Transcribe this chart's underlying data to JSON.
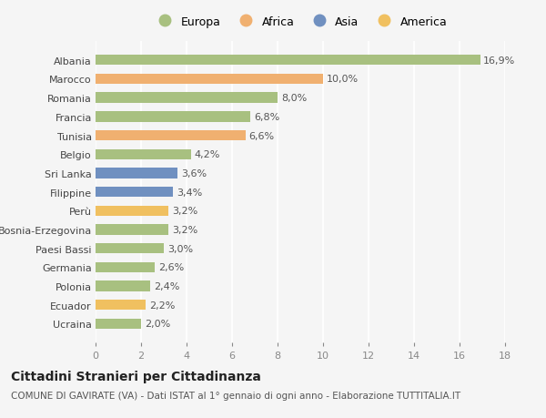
{
  "categories": [
    "Ucraina",
    "Ecuador",
    "Polonia",
    "Germania",
    "Paesi Bassi",
    "Bosnia-Erzegovina",
    "Perù",
    "Filippine",
    "Sri Lanka",
    "Belgio",
    "Tunisia",
    "Francia",
    "Romania",
    "Marocco",
    "Albania"
  ],
  "values": [
    2.0,
    2.2,
    2.4,
    2.6,
    3.0,
    3.2,
    3.2,
    3.4,
    3.6,
    4.2,
    6.6,
    6.8,
    8.0,
    10.0,
    16.9
  ],
  "colors": [
    "#a8c080",
    "#f0c060",
    "#a8c080",
    "#a8c080",
    "#a8c080",
    "#a8c080",
    "#f0c060",
    "#7090c0",
    "#7090c0",
    "#a8c080",
    "#f0b070",
    "#a8c080",
    "#a8c080",
    "#f0b070",
    "#a8c080"
  ],
  "labels": [
    "2,0%",
    "2,2%",
    "2,4%",
    "2,6%",
    "3,0%",
    "3,2%",
    "3,2%",
    "3,4%",
    "3,6%",
    "4,2%",
    "6,6%",
    "6,8%",
    "8,0%",
    "10,0%",
    "16,9%"
  ],
  "legend_labels": [
    "Europa",
    "Africa",
    "Asia",
    "America"
  ],
  "legend_colors": [
    "#a8c080",
    "#f0b070",
    "#7090c0",
    "#f0c060"
  ],
  "xlim": [
    0,
    18
  ],
  "xticks": [
    0,
    2,
    4,
    6,
    8,
    10,
    12,
    14,
    16,
    18
  ],
  "title": "Cittadini Stranieri per Cittadinanza",
  "subtitle": "COMUNE DI GAVIRATE (VA) - Dati ISTAT al 1° gennaio di ogni anno - Elaborazione TUTTITALIA.IT",
  "bg_color": "#f5f5f5",
  "bar_height": 0.55,
  "label_fontsize": 8,
  "ytick_fontsize": 8,
  "xtick_fontsize": 8,
  "title_fontsize": 10,
  "subtitle_fontsize": 7.5,
  "legend_fontsize": 9
}
